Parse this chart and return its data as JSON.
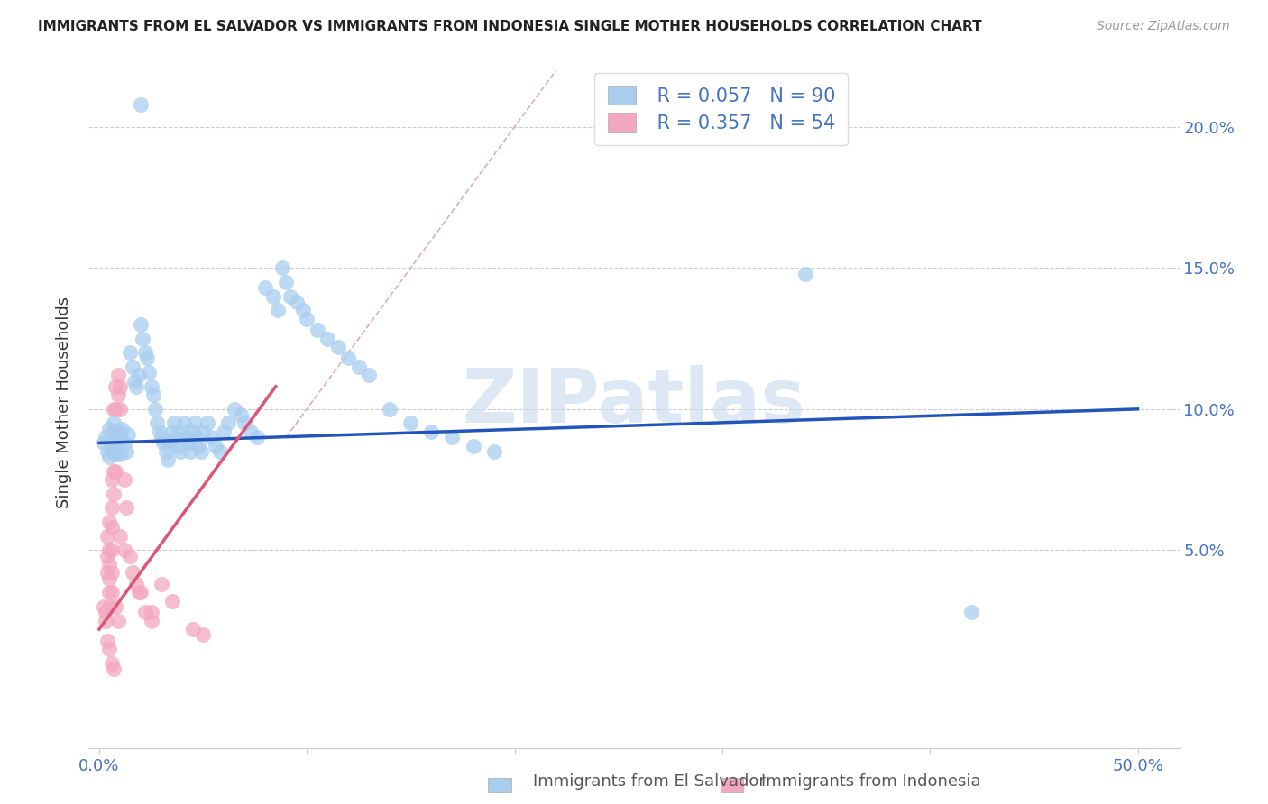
{
  "title": "IMMIGRANTS FROM EL SALVADOR VS IMMIGRANTS FROM INDONESIA SINGLE MOTHER HOUSEHOLDS CORRELATION CHART",
  "source": "Source: ZipAtlas.com",
  "ylabel": "Single Mother Households",
  "yticks": [
    0.05,
    0.1,
    0.15,
    0.2
  ],
  "ytick_labels": [
    "5.0%",
    "10.0%",
    "15.0%",
    "20.0%"
  ],
  "xtick_minor": [
    0.0,
    0.1,
    0.2,
    0.3,
    0.4,
    0.5
  ],
  "xlim": [
    -0.005,
    0.52
  ],
  "ylim": [
    -0.02,
    0.225
  ],
  "legend_blue_R": "R = 0.057",
  "legend_blue_N": "N = 90",
  "legend_pink_R": "R = 0.357",
  "legend_pink_N": "N = 54",
  "legend_blue_label": "Immigrants from El Salvador",
  "legend_pink_label": "Immigrants from Indonesia",
  "blue_color": "#A8CDEF",
  "pink_color": "#F4A7C0",
  "blue_line_color": "#2255BB",
  "pink_line_color": "#DD5577",
  "diag_line_color": "#DDB0B0",
  "watermark": "ZIPatlas",
  "blue_scatter": [
    [
      0.002,
      0.088
    ],
    [
      0.003,
      0.09
    ],
    [
      0.004,
      0.085
    ],
    [
      0.005,
      0.093
    ],
    [
      0.005,
      0.083
    ],
    [
      0.006,
      0.091
    ],
    [
      0.006,
      0.086
    ],
    [
      0.007,
      0.095
    ],
    [
      0.007,
      0.089
    ],
    [
      0.008,
      0.088
    ],
    [
      0.008,
      0.084
    ],
    [
      0.009,
      0.092
    ],
    [
      0.009,
      0.086
    ],
    [
      0.01,
      0.09
    ],
    [
      0.01,
      0.084
    ],
    [
      0.011,
      0.093
    ],
    [
      0.012,
      0.088
    ],
    [
      0.013,
      0.085
    ],
    [
      0.014,
      0.091
    ],
    [
      0.015,
      0.12
    ],
    [
      0.016,
      0.115
    ],
    [
      0.017,
      0.11
    ],
    [
      0.018,
      0.108
    ],
    [
      0.019,
      0.112
    ],
    [
      0.02,
      0.13
    ],
    [
      0.021,
      0.125
    ],
    [
      0.022,
      0.12
    ],
    [
      0.023,
      0.118
    ],
    [
      0.024,
      0.113
    ],
    [
      0.025,
      0.108
    ],
    [
      0.026,
      0.105
    ],
    [
      0.027,
      0.1
    ],
    [
      0.028,
      0.095
    ],
    [
      0.029,
      0.092
    ],
    [
      0.03,
      0.09
    ],
    [
      0.031,
      0.088
    ],
    [
      0.032,
      0.085
    ],
    [
      0.033,
      0.082
    ],
    [
      0.034,
      0.088
    ],
    [
      0.035,
      0.092
    ],
    [
      0.036,
      0.095
    ],
    [
      0.037,
      0.09
    ],
    [
      0.038,
      0.087
    ],
    [
      0.039,
      0.085
    ],
    [
      0.04,
      0.092
    ],
    [
      0.041,
      0.095
    ],
    [
      0.042,
      0.09
    ],
    [
      0.043,
      0.088
    ],
    [
      0.044,
      0.085
    ],
    [
      0.045,
      0.092
    ],
    [
      0.046,
      0.095
    ],
    [
      0.047,
      0.09
    ],
    [
      0.048,
      0.087
    ],
    [
      0.049,
      0.085
    ],
    [
      0.05,
      0.092
    ],
    [
      0.052,
      0.095
    ],
    [
      0.054,
      0.09
    ],
    [
      0.056,
      0.087
    ],
    [
      0.058,
      0.085
    ],
    [
      0.06,
      0.092
    ],
    [
      0.062,
      0.095
    ],
    [
      0.065,
      0.1
    ],
    [
      0.068,
      0.098
    ],
    [
      0.07,
      0.095
    ],
    [
      0.073,
      0.092
    ],
    [
      0.076,
      0.09
    ],
    [
      0.08,
      0.143
    ],
    [
      0.084,
      0.14
    ],
    [
      0.086,
      0.135
    ],
    [
      0.088,
      0.15
    ],
    [
      0.09,
      0.145
    ],
    [
      0.092,
      0.14
    ],
    [
      0.095,
      0.138
    ],
    [
      0.098,
      0.135
    ],
    [
      0.1,
      0.132
    ],
    [
      0.105,
      0.128
    ],
    [
      0.11,
      0.125
    ],
    [
      0.115,
      0.122
    ],
    [
      0.12,
      0.118
    ],
    [
      0.125,
      0.115
    ],
    [
      0.13,
      0.112
    ],
    [
      0.14,
      0.1
    ],
    [
      0.15,
      0.095
    ],
    [
      0.16,
      0.092
    ],
    [
      0.17,
      0.09
    ],
    [
      0.18,
      0.087
    ],
    [
      0.19,
      0.085
    ],
    [
      0.02,
      0.208
    ],
    [
      0.34,
      0.148
    ],
    [
      0.42,
      0.028
    ]
  ],
  "pink_scatter": [
    [
      0.002,
      0.03
    ],
    [
      0.003,
      0.025
    ],
    [
      0.003,
      0.028
    ],
    [
      0.004,
      0.055
    ],
    [
      0.004,
      0.048
    ],
    [
      0.004,
      0.042
    ],
    [
      0.005,
      0.06
    ],
    [
      0.005,
      0.05
    ],
    [
      0.005,
      0.045
    ],
    [
      0.005,
      0.04
    ],
    [
      0.005,
      0.035
    ],
    [
      0.005,
      0.03
    ],
    [
      0.006,
      0.075
    ],
    [
      0.006,
      0.065
    ],
    [
      0.006,
      0.058
    ],
    [
      0.006,
      0.05
    ],
    [
      0.006,
      0.042
    ],
    [
      0.006,
      0.035
    ],
    [
      0.007,
      0.1
    ],
    [
      0.007,
      0.092
    ],
    [
      0.007,
      0.085
    ],
    [
      0.007,
      0.078
    ],
    [
      0.007,
      0.07
    ],
    [
      0.008,
      0.108
    ],
    [
      0.008,
      0.1
    ],
    [
      0.008,
      0.092
    ],
    [
      0.008,
      0.085
    ],
    [
      0.008,
      0.078
    ],
    [
      0.009,
      0.112
    ],
    [
      0.009,
      0.105
    ],
    [
      0.01,
      0.108
    ],
    [
      0.01,
      0.1
    ],
    [
      0.012,
      0.075
    ],
    [
      0.013,
      0.065
    ],
    [
      0.015,
      0.048
    ],
    [
      0.016,
      0.042
    ],
    [
      0.018,
      0.038
    ],
    [
      0.019,
      0.035
    ],
    [
      0.022,
      0.028
    ],
    [
      0.025,
      0.025
    ],
    [
      0.03,
      0.038
    ],
    [
      0.035,
      0.032
    ],
    [
      0.045,
      0.022
    ],
    [
      0.05,
      0.02
    ],
    [
      0.004,
      0.018
    ],
    [
      0.005,
      0.015
    ],
    [
      0.006,
      0.01
    ],
    [
      0.007,
      0.008
    ],
    [
      0.02,
      0.035
    ],
    [
      0.025,
      0.028
    ],
    [
      0.01,
      0.055
    ],
    [
      0.012,
      0.05
    ],
    [
      0.008,
      0.03
    ],
    [
      0.009,
      0.025
    ]
  ],
  "blue_line_x": [
    0.0,
    0.5
  ],
  "blue_line_y": [
    0.088,
    0.1
  ],
  "pink_line_x": [
    0.0,
    0.085
  ],
  "pink_line_y": [
    0.022,
    0.108
  ],
  "diag_line_x": [
    0.09,
    0.22
  ],
  "diag_line_y": [
    0.09,
    0.22
  ]
}
